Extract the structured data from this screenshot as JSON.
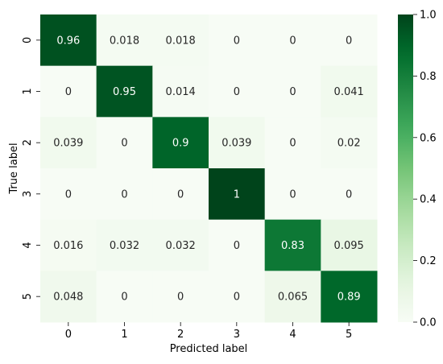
{
  "chart_data": {
    "type": "heatmap",
    "title": "",
    "xlabel": "Predicted label",
    "ylabel": "True label",
    "x_categories": [
      "0",
      "1",
      "2",
      "3",
      "4",
      "5"
    ],
    "y_categories": [
      "0",
      "1",
      "2",
      "3",
      "4",
      "5"
    ],
    "values": [
      [
        0.96,
        0.018,
        0.018,
        0,
        0,
        0
      ],
      [
        0,
        0.95,
        0.014,
        0,
        0,
        0.041
      ],
      [
        0.039,
        0,
        0.9,
        0.039,
        0,
        0.02
      ],
      [
        0,
        0,
        0,
        1,
        0,
        0
      ],
      [
        0.016,
        0.032,
        0.032,
        0,
        0.83,
        0.095
      ],
      [
        0.048,
        0,
        0,
        0,
        0.065,
        0.89
      ]
    ],
    "cell_labels": [
      [
        "0.96",
        "0.018",
        "0.018",
        "0",
        "0",
        "0"
      ],
      [
        "0",
        "0.95",
        "0.014",
        "0",
        "0",
        "0.041"
      ],
      [
        "0.039",
        "0",
        "0.9",
        "0.039",
        "0",
        "0.02"
      ],
      [
        "0",
        "0",
        "0",
        "1",
        "0",
        "0"
      ],
      [
        "0.016",
        "0.032",
        "0.032",
        "0",
        "0.83",
        "0.095"
      ],
      [
        "0.048",
        "0",
        "0",
        "0",
        "0.065",
        "0.89"
      ]
    ],
    "colormap": "Greens",
    "colorbar": {
      "range": [
        0.0,
        1.0
      ],
      "ticks": [
        0.0,
        0.2,
        0.4,
        0.6,
        0.8,
        1.0
      ],
      "tick_labels": [
        "0.0",
        "0.2",
        "0.4",
        "0.6",
        "0.8",
        "1.0"
      ]
    },
    "grid": false,
    "legend": "colorbar-right"
  }
}
